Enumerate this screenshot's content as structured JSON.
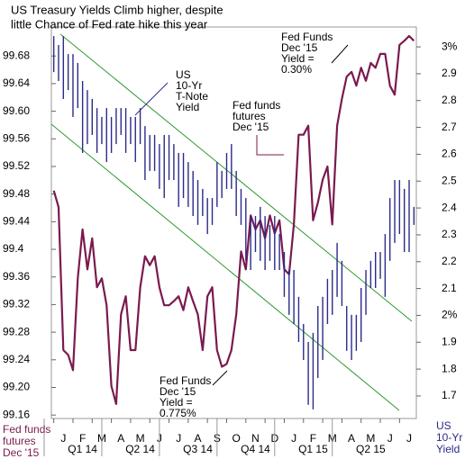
{
  "chart_data": {
    "type": "line",
    "title": [
      "US Treasury Yields Climb higher, despite",
      "little Chance of Fed rate hike this year"
    ],
    "ylabel": [
      "Fed funds",
      "futures",
      "Dec '15"
    ],
    "y2label": [
      "US",
      "10-Yr",
      "Yield"
    ],
    "annotations": [
      {
        "lines": [
          "US",
          "10-Yr",
          "T-Note",
          "Yield"
        ],
        "color": "#2a2a8a"
      },
      {
        "lines": [
          "Fed funds",
          "futures",
          "Dec '15"
        ],
        "color": "#7a1a4f"
      },
      {
        "lines": [
          "Fed Funds",
          "Dec '15",
          "Yield =",
          "0.30%"
        ],
        "color": "#000000"
      },
      {
        "lines": [
          "Fed Funds",
          "Dec '15",
          "Yield =",
          "0.775%"
        ],
        "color": "#000000"
      }
    ],
    "categories": [
      null,
      null,
      "J",
      null,
      null,
      null,
      "F",
      null,
      null,
      null,
      "M",
      null,
      null,
      null,
      "A",
      null,
      null,
      null,
      "M",
      null,
      null,
      null,
      "J",
      null,
      null,
      null,
      "J",
      null,
      null,
      null,
      "A",
      null,
      null,
      null,
      "S",
      null,
      null,
      null,
      "O",
      null,
      null,
      null,
      "N",
      null,
      null,
      null,
      "D",
      null,
      null,
      null,
      "J",
      null,
      null,
      null,
      "F",
      null,
      null,
      null,
      "M",
      null,
      null,
      null,
      "A",
      null,
      null,
      null,
      "M",
      null,
      null,
      null,
      "J",
      null,
      null,
      null,
      "J",
      null
    ],
    "quarters": [
      "Q1 14",
      "Q2 14",
      "Q3 14",
      "Q4 14",
      "Q1 15",
      "Q2 15"
    ],
    "series": [
      {
        "type": "line",
        "axis": "y",
        "color": "#7a1a4f",
        "values": [
          99.485,
          99.461,
          99.254,
          99.247,
          99.225,
          99.358,
          99.429,
          99.371,
          99.416,
          99.345,
          99.358,
          99.319,
          99.202,
          99.176,
          99.306,
          99.332,
          99.254,
          99.254,
          99.345,
          99.39,
          99.377,
          99.39,
          99.345,
          99.319,
          99.319,
          99.325,
          99.332,
          99.312,
          99.345,
          99.325,
          99.306,
          99.254,
          99.332,
          99.345,
          99.254,
          99.23,
          99.234,
          99.254,
          99.306,
          99.397,
          99.371,
          99.449,
          99.429,
          99.442,
          99.416,
          99.449,
          99.423,
          99.442,
          99.371,
          99.364,
          99.436,
          99.566,
          99.566,
          99.579,
          99.442,
          99.468,
          99.501,
          99.52,
          99.436,
          99.579,
          99.618,
          99.65,
          99.657,
          99.637,
          99.663,
          99.644,
          99.67,
          99.663,
          99.683,
          99.683,
          99.637,
          99.624,
          99.696,
          99.702,
          99.709,
          99.702
        ]
      },
      {
        "type": "range",
        "axis": "y2",
        "color": "#2a2a8a",
        "high": [
          3.04,
          3.007,
          3.04,
          2.973,
          2.973,
          2.94,
          2.873,
          2.839,
          2.806,
          2.772,
          2.739,
          2.772,
          2.739,
          2.772,
          2.772,
          2.772,
          2.739,
          2.739,
          2.772,
          2.705,
          2.672,
          2.672,
          2.638,
          2.672,
          2.672,
          2.638,
          2.605,
          2.605,
          2.571,
          2.538,
          2.504,
          2.471,
          2.437,
          2.437,
          2.571,
          2.538,
          2.605,
          2.638,
          2.538,
          2.471,
          2.437,
          2.37,
          2.37,
          2.404,
          2.37,
          2.337,
          2.37,
          2.303,
          2.236,
          2.169,
          2.169,
          2.069,
          1.968,
          1.901,
          1.935,
          2.035,
          2.069,
          2.136,
          2.169,
          2.27,
          2.203,
          2.035,
          2.002,
          2.002,
          2.102,
          2.169,
          2.203,
          2.236,
          2.236,
          2.303,
          2.437,
          2.504,
          2.504,
          2.471,
          2.504,
          2.404
        ],
        "low": [
          2.906,
          2.873,
          2.806,
          2.839,
          2.739,
          2.772,
          2.605,
          2.638,
          2.672,
          2.605,
          2.638,
          2.571,
          2.605,
          2.638,
          2.672,
          2.605,
          2.638,
          2.571,
          2.638,
          2.504,
          2.538,
          2.538,
          2.471,
          2.437,
          2.504,
          2.504,
          2.404,
          2.437,
          2.404,
          2.37,
          2.337,
          2.37,
          2.303,
          2.337,
          2.404,
          2.437,
          2.471,
          2.471,
          2.37,
          2.337,
          2.203,
          2.169,
          2.236,
          2.203,
          2.169,
          2.203,
          2.169,
          2.169,
          2.069,
          2.002,
          1.968,
          1.901,
          1.834,
          1.667,
          1.65,
          1.767,
          1.834,
          1.968,
          2.002,
          2.069,
          2.035,
          1.868,
          1.834,
          1.868,
          1.901,
          2.002,
          2.102,
          2.102,
          2.136,
          2.069,
          2.203,
          2.27,
          2.303,
          2.236,
          2.236,
          2.337
        ]
      }
    ],
    "ylim": [
      99.155,
      99.722
    ],
    "yticks": [
      99.16,
      {
        "value": 99.2,
        "label": "99.20"
      },
      99.24,
      99.28,
      99.32,
      99.36,
      99.4,
      99.44,
      99.48,
      99.52,
      99.56,
      {
        "value": 99.6,
        "label": "99.60"
      },
      99.64,
      99.68
    ],
    "y2lim": [
      1.616,
      3.074
    ],
    "y2ticks": [
      1.7,
      1.8,
      1.9,
      {
        "value": 2,
        "label": "2%"
      },
      2.1,
      2.2,
      2.3,
      2.4,
      2.5,
      2.6,
      2.7,
      2.8,
      2.9,
      {
        "value": 3,
        "label": "3%"
      }
    ]
  }
}
